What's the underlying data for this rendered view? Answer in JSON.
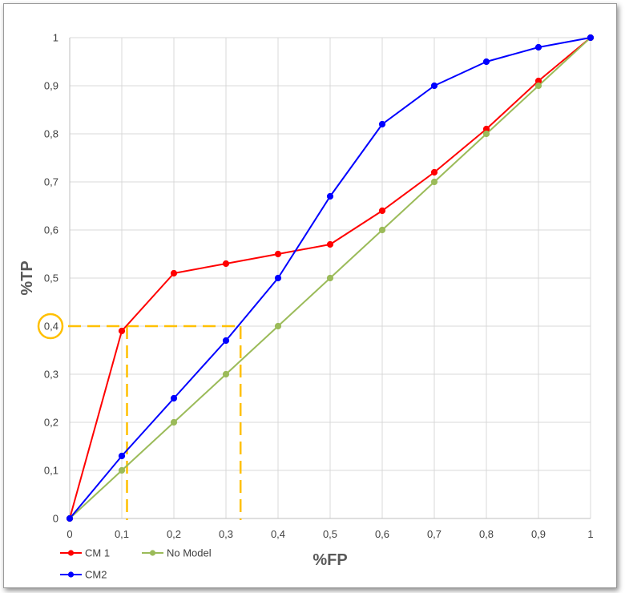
{
  "chart_data": {
    "type": "line",
    "title": "",
    "xlabel": "%FP",
    "ylabel": "%TP",
    "xlim": [
      0,
      1
    ],
    "ylim": [
      0,
      1
    ],
    "grid": true,
    "x_ticks": [
      "0",
      "0,1",
      "0,2",
      "0,3",
      "0,4",
      "0,5",
      "0,6",
      "0,7",
      "0,8",
      "0,9",
      "1"
    ],
    "y_ticks": [
      "0",
      "0,1",
      "0,2",
      "0,3",
      "0,4",
      "0,5",
      "0,6",
      "0,7",
      "0,8",
      "0,9",
      "1"
    ],
    "legend_position": "bottom-left",
    "series": [
      {
        "name": "CM 1",
        "color": "#ff0000",
        "x": [
          0,
          0.1,
          0.2,
          0.3,
          0.4,
          0.5,
          0.6,
          0.7,
          0.8,
          0.9,
          1
        ],
        "y": [
          0,
          0.39,
          0.51,
          0.53,
          0.55,
          0.57,
          0.64,
          0.72,
          0.81,
          0.91,
          1
        ]
      },
      {
        "name": "No Model",
        "color": "#9bbb59",
        "x": [
          0,
          0.1,
          0.2,
          0.3,
          0.4,
          0.5,
          0.6,
          0.7,
          0.8,
          0.9,
          1
        ],
        "y": [
          0,
          0.1,
          0.2,
          0.3,
          0.4,
          0.5,
          0.6,
          0.7,
          0.8,
          0.9,
          1
        ]
      },
      {
        "name": "CM2",
        "color": "#0000ff",
        "x": [
          0,
          0.1,
          0.2,
          0.3,
          0.4,
          0.5,
          0.6,
          0.7,
          0.8,
          0.9,
          1
        ],
        "y": [
          0,
          0.13,
          0.25,
          0.37,
          0.5,
          0.67,
          0.82,
          0.9,
          0.95,
          0.98,
          1
        ]
      }
    ],
    "annotations": {
      "color": "#ffc000",
      "highlight_y": 0.4,
      "guide_x": [
        0.11,
        0.328
      ]
    }
  }
}
